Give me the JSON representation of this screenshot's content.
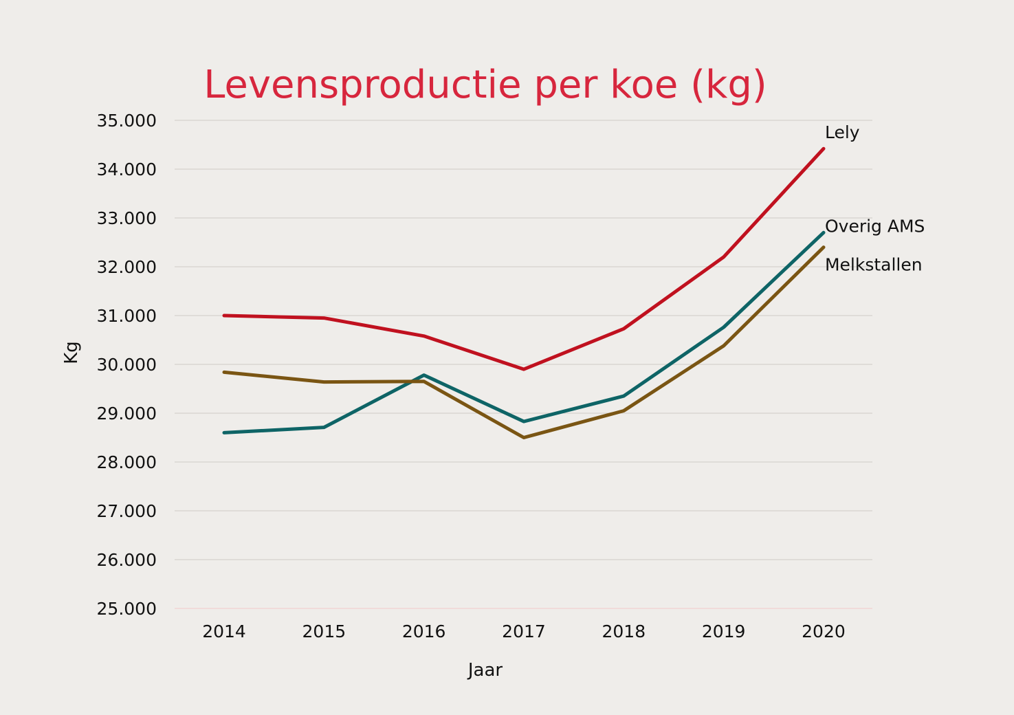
{
  "colors": {
    "background": "#efedea",
    "title": "#d7263d",
    "baseline": "#f3c9c9"
  },
  "chart_data": {
    "type": "line",
    "title": "Levensproductie per koe (kg)",
    "xlabel": "Jaar",
    "ylabel": "Kg",
    "categories": [
      "2014",
      "2015",
      "2016",
      "2017",
      "2018",
      "2019",
      "2020"
    ],
    "ylim": [
      25000,
      35000
    ],
    "yticks": [
      25000,
      26000,
      27000,
      28000,
      29000,
      30000,
      31000,
      32000,
      33000,
      34000,
      35000
    ],
    "ytick_labels": [
      "25.000",
      "26.000",
      "27.000",
      "28.000",
      "29.000",
      "30.000",
      "31.000",
      "32.000",
      "33.000",
      "34.000",
      "35.000"
    ],
    "grid": true,
    "legend": "labels at line ends",
    "series": [
      {
        "name": "Lely",
        "color": "#c0111f",
        "values": [
          31000,
          30950,
          30580,
          29900,
          30730,
          32200,
          34420
        ]
      },
      {
        "name": "Overig AMS",
        "color": "#0e6466",
        "values": [
          28600,
          28710,
          29780,
          28830,
          29350,
          30760,
          32700
        ]
      },
      {
        "name": "Melkstallen",
        "color": "#7a5513",
        "values": [
          29840,
          29640,
          29650,
          28500,
          29050,
          30380,
          32400
        ]
      }
    ]
  }
}
